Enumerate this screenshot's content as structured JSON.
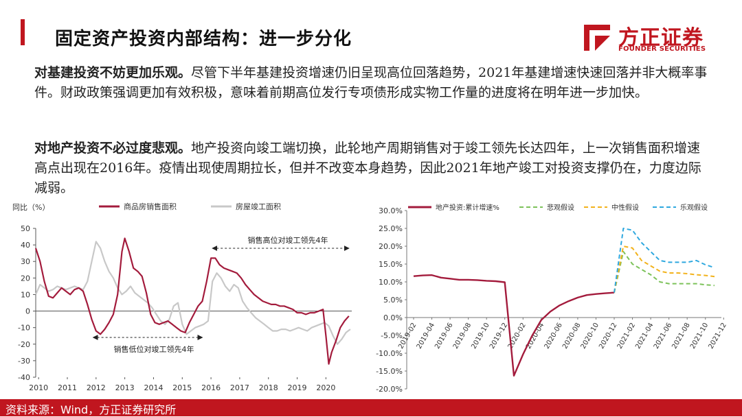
{
  "header": {
    "title": "固定资产投资内部结构：进一步分化",
    "logo_cn": "方正证券",
    "logo_en": "FOUNDER SECURITIES",
    "accent": "#c0161f"
  },
  "paragraphs": [
    {
      "lead": "对基建投资不妨更加乐观。",
      "body": "尽管下半年基建投资增速仍旧呈现高位回落趋势，2021年基建增速快速回落并非大概率事件。财政政策强调更加有效积极，意味着前期高位发行专项债形成实物工作量的进度将在明年进一步加快。"
    },
    {
      "lead": "对地产投资不必过度悲观。",
      "body": "地产投资向竣工端切换，此轮地产周期销售对于竣工领先长达四年，上一次销售面积增速高点出现在2016年。疫情出现使周期拉长，但并不改变本身趋势，因此2021年地产竣工对投资支撑仍在，力度边际减弱。"
    }
  ],
  "footer": {
    "source": "资料来源：Wind，方正证券研究所"
  },
  "chart_data": [
    {
      "type": "line",
      "ylabel": "同比（%）",
      "ylim": [
        -40,
        50
      ],
      "yticks": [
        50,
        40,
        30,
        20,
        10,
        0,
        -10,
        -20,
        -30,
        -40
      ],
      "xlim": [
        2010,
        2021
      ],
      "xticks": [
        "2010",
        "2011",
        "2012",
        "2013",
        "2014",
        "2015",
        "2016",
        "2017",
        "2018",
        "2019",
        "2020"
      ],
      "legend_position": "top",
      "annotations": [
        "销售高位对竣工领先4年",
        "销售低位对竣工领先4年"
      ],
      "series": [
        {
          "name": "商品房销售面积",
          "color": "#a31b3c",
          "x": [
            2010.0,
            2010.15,
            2010.3,
            2010.45,
            2010.6,
            2010.75,
            2010.9,
            2011.05,
            2011.2,
            2011.35,
            2011.5,
            2011.65,
            2011.8,
            2011.95,
            2012.1,
            2012.25,
            2012.4,
            2012.55,
            2012.7,
            2012.85,
            2013.0,
            2013.1,
            2013.25,
            2013.4,
            2013.55,
            2013.7,
            2013.85,
            2014.0,
            2014.15,
            2014.3,
            2014.45,
            2014.6,
            2014.75,
            2014.9,
            2015.05,
            2015.2,
            2015.35,
            2015.5,
            2015.65,
            2015.8,
            2015.95,
            2016.1,
            2016.25,
            2016.4,
            2016.55,
            2016.7,
            2016.85,
            2017.0,
            2017.15,
            2017.3,
            2017.45,
            2017.6,
            2017.75,
            2017.9,
            2018.05,
            2018.2,
            2018.35,
            2018.5,
            2018.65,
            2018.8,
            2018.95,
            2019.1,
            2019.25,
            2019.4,
            2019.55,
            2019.7,
            2019.85,
            2020.0,
            2020.1,
            2020.2,
            2020.3,
            2020.45,
            2020.6,
            2020.75,
            2020.9
          ],
          "values": [
            38,
            30,
            18,
            9,
            8,
            11,
            14,
            12,
            10,
            13,
            14,
            12,
            4,
            -5,
            -12,
            -14,
            -11,
            -7,
            -2,
            10,
            36,
            44,
            36,
            26,
            24,
            21,
            11,
            -2,
            -7,
            -8,
            -7,
            -6,
            -8,
            -10,
            -12,
            -13,
            -7,
            -2,
            3,
            6,
            18,
            32,
            32,
            28,
            26,
            25,
            24,
            23,
            20,
            16,
            13,
            10,
            8,
            6,
            5,
            4,
            4,
            3,
            3,
            2,
            1,
            -1,
            -1,
            -2,
            -1,
            -1,
            0,
            1,
            -15,
            -32,
            -25,
            -18,
            -10,
            -6,
            -3
          ]
        },
        {
          "name": "房屋竣工面积",
          "color": "#c8c8c8",
          "x": [
            2010.0,
            2010.15,
            2010.3,
            2010.45,
            2010.6,
            2010.75,
            2010.9,
            2011.05,
            2011.2,
            2011.35,
            2011.5,
            2011.65,
            2011.8,
            2011.95,
            2012.1,
            2012.25,
            2012.4,
            2012.55,
            2012.7,
            2012.85,
            2013.0,
            2013.15,
            2013.3,
            2013.45,
            2013.6,
            2013.75,
            2013.9,
            2014.05,
            2014.2,
            2014.35,
            2014.5,
            2014.65,
            2014.8,
            2014.95,
            2015.1,
            2015.25,
            2015.4,
            2015.55,
            2015.7,
            2015.85,
            2016.0,
            2016.15,
            2016.3,
            2016.45,
            2016.6,
            2016.75,
            2016.9,
            2017.05,
            2017.2,
            2017.35,
            2017.5,
            2017.65,
            2017.8,
            2017.95,
            2018.1,
            2018.25,
            2018.4,
            2018.55,
            2018.7,
            2018.85,
            2019.0,
            2019.15,
            2019.3,
            2019.45,
            2019.6,
            2019.75,
            2019.9,
            2020.05,
            2020.2,
            2020.35,
            2020.5,
            2020.65,
            2020.8,
            2020.95
          ],
          "values": [
            10,
            16,
            14,
            12,
            13,
            15,
            14,
            13,
            14,
            15,
            14,
            13,
            18,
            30,
            42,
            38,
            30,
            24,
            20,
            14,
            10,
            12,
            15,
            11,
            9,
            7,
            5,
            2,
            -2,
            -6,
            -8,
            -5,
            3,
            5,
            -8,
            -14,
            -12,
            -10,
            -9,
            -8,
            -6,
            18,
            23,
            20,
            15,
            12,
            16,
            14,
            6,
            2,
            -1,
            -4,
            -6,
            -8,
            -10,
            -12,
            -12,
            -11,
            -11,
            -12,
            -11,
            -10,
            -11,
            -12,
            -10,
            -9,
            -8,
            -7,
            -9,
            -15,
            -20,
            -17,
            -13,
            -11
          ]
        }
      ]
    },
    {
      "type": "line",
      "ylim": [
        -20,
        30
      ],
      "yticks": [
        "30.0%",
        "25.0%",
        "20.0%",
        "15.0%",
        "10.0%",
        "5.0%",
        "0.0%",
        "-5.0%",
        "-10.0%",
        "-15.0%",
        "-20.0%"
      ],
      "xticks": [
        "2019-02",
        "2019-04",
        "2019-06",
        "2019-08",
        "2019-10",
        "2019-12",
        "2020-02",
        "2020-04",
        "2020-06",
        "2020-08",
        "2020-10",
        "2020-12",
        "2021-02",
        "2021-04",
        "2021-06",
        "2021-08",
        "2021-10",
        "2021-12"
      ],
      "legend_position": "top",
      "series": [
        {
          "name": "地产投资:累计增速%",
          "color": "#a31b3c",
          "dash": "",
          "x": [
            0,
            1,
            2,
            3,
            4,
            5,
            6,
            7,
            8,
            9,
            10,
            11,
            12,
            13,
            14,
            15,
            16,
            17,
            18,
            19,
            20,
            21,
            22
          ],
          "values": [
            11.6,
            11.8,
            11.9,
            11.2,
            10.9,
            10.6,
            10.6,
            10.5,
            10.3,
            10.2,
            9.9,
            -16.3,
            -10.3,
            -5.1,
            -0.7,
            1.7,
            3.4,
            4.6,
            5.6,
            6.3,
            6.6,
            6.8,
            7.0
          ]
        },
        {
          "name": "悲观假设",
          "color": "#7cc25a",
          "dash": "6,4",
          "x": [
            22,
            23,
            24,
            25,
            26,
            27,
            28,
            29,
            30,
            31,
            32,
            33
          ],
          "values": [
            7.0,
            18.5,
            15.0,
            13.5,
            12.0,
            10.0,
            9.5,
            9.5,
            9.5,
            9.5,
            9.2,
            9.0
          ]
        },
        {
          "name": "中性假设",
          "color": "#f2b21b",
          "dash": "6,4",
          "x": [
            22,
            23,
            24,
            25,
            26,
            27,
            28,
            29,
            30,
            31,
            32,
            33
          ],
          "values": [
            7.0,
            20.0,
            19.5,
            16.0,
            14.5,
            13.0,
            12.5,
            12.5,
            12.3,
            12.0,
            11.8,
            11.5
          ]
        },
        {
          "name": "乐观假设",
          "color": "#2ea8df",
          "dash": "6,4",
          "x": [
            22,
            23,
            24,
            25,
            26,
            27,
            28,
            29,
            30,
            31,
            32,
            33
          ],
          "values": [
            7.0,
            25.0,
            24.5,
            21.0,
            18.5,
            16.0,
            15.5,
            15.5,
            15.5,
            16.0,
            14.8,
            14.0
          ]
        }
      ]
    }
  ]
}
